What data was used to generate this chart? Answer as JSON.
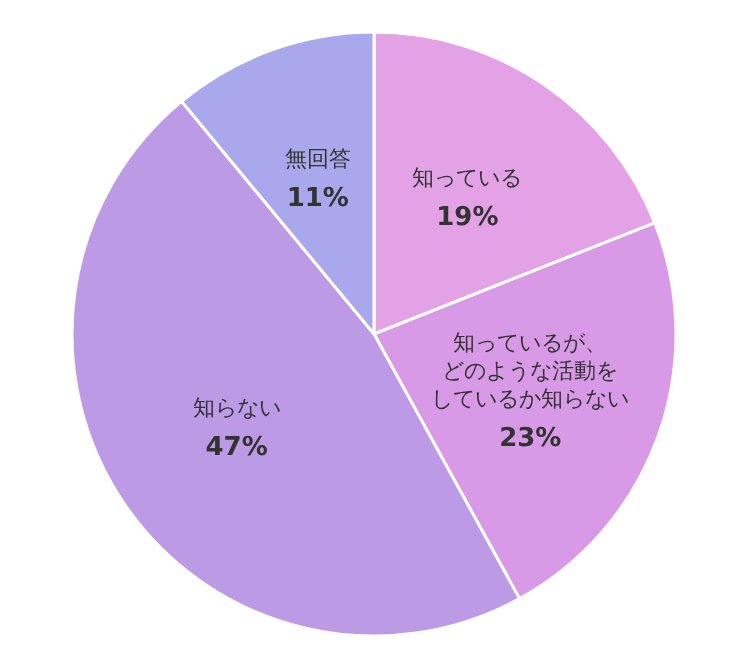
{
  "chart_data": {
    "type": "pie",
    "categories": [
      "知っている",
      "知っているが、どのような活動をしているか知らない",
      "知らない",
      "無回答"
    ],
    "values": [
      19,
      23,
      47,
      11
    ],
    "colors": [
      "#e4a2e6",
      "#d89ae6",
      "#bc9ae6",
      "#aaa8ec"
    ],
    "value_labels": [
      "19%",
      "23%",
      "47%",
      "11%"
    ]
  }
}
